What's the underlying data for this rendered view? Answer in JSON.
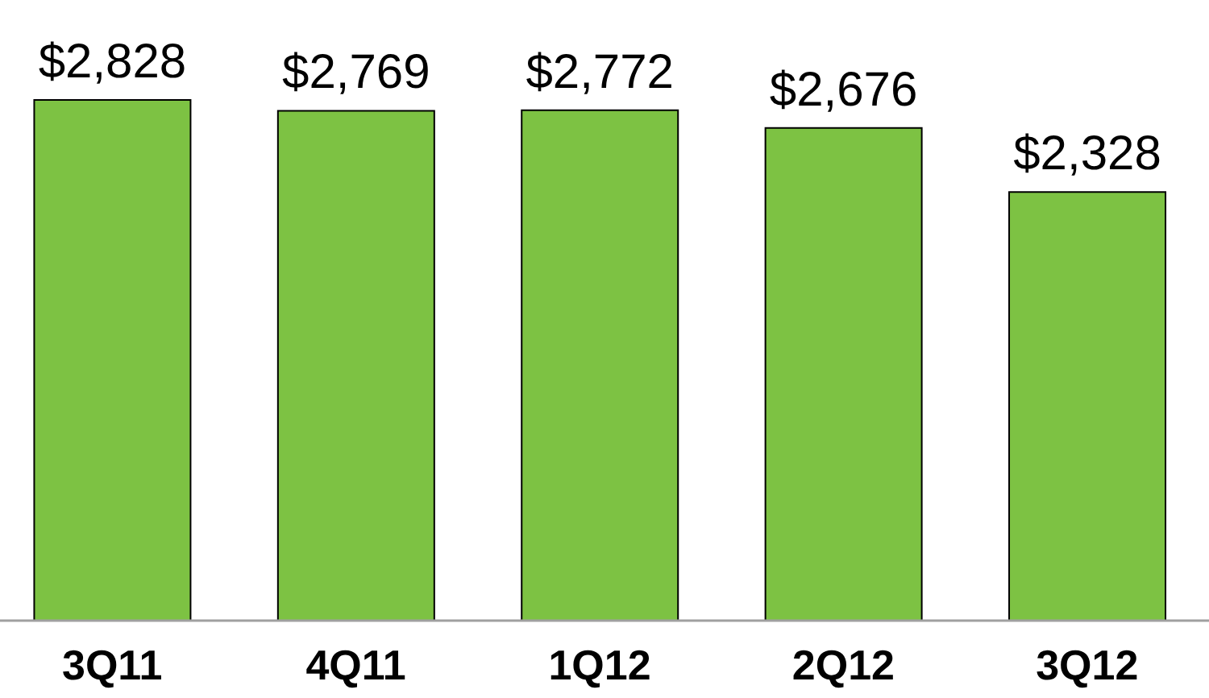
{
  "chart_data": {
    "type": "bar",
    "categories": [
      "3Q11",
      "4Q11",
      "1Q12",
      "2Q12",
      "3Q12"
    ],
    "values": [
      2828,
      2769,
      2772,
      2676,
      2328
    ],
    "value_labels": [
      "$2,828",
      "$2,769",
      "$2,772",
      "$2,676",
      "$2,328"
    ],
    "color": "#7dc243",
    "grid": false
  }
}
